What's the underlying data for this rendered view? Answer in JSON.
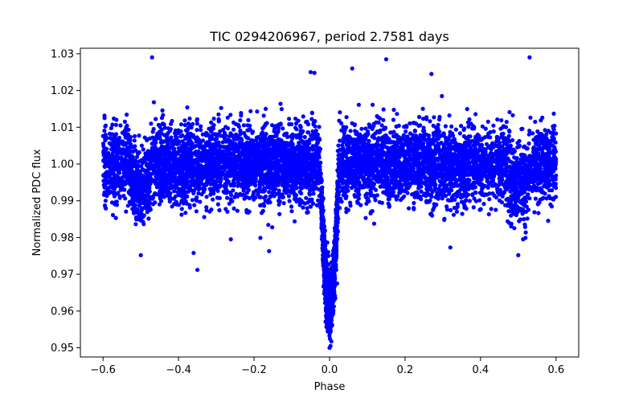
{
  "chart_data": {
    "type": "scatter",
    "title": "TIC 0294206967, period 2.7581 days",
    "xlabel": "Phase",
    "ylabel": "Normalized PDC flux",
    "xlim": [
      -0.66,
      0.66
    ],
    "ylim": [
      0.9475,
      1.0315
    ],
    "x_ticks": [
      -0.6,
      -0.4,
      -0.2,
      0.0,
      0.2,
      0.4,
      0.6
    ],
    "x_tick_labels": [
      "−0.6",
      "−0.4",
      "−0.2",
      "0.0",
      "0.2",
      "0.4",
      "0.6"
    ],
    "y_ticks": [
      0.95,
      0.96,
      0.97,
      0.98,
      0.99,
      1.0,
      1.01,
      1.02,
      1.03
    ],
    "y_tick_labels": [
      "0.95",
      "0.96",
      "0.97",
      "0.98",
      "0.99",
      "1.00",
      "1.01",
      "1.02",
      "1.03"
    ],
    "grid": false,
    "legend": null,
    "series": [
      {
        "name": "PDC flux",
        "color": "#0000ff",
        "marker": "circle",
        "phase_range": [
          -0.6,
          0.6
        ],
        "baseline_flux": 1.0,
        "baseline_scatter_sigma": 0.0055,
        "primary_transit": {
          "center": 0.0,
          "depth": 0.038,
          "half_width": 0.025,
          "min_flux": 0.95
        },
        "secondary_eclipses": [
          {
            "center": -0.5,
            "depth": 0.006,
            "half_width": 0.03
          },
          {
            "center": 0.5,
            "depth": 0.006,
            "half_width": 0.03
          }
        ],
        "outliers": [
          {
            "x": -0.47,
            "y": 1.029
          },
          {
            "x": 0.15,
            "y": 1.0285
          },
          {
            "x": 0.53,
            "y": 1.029
          },
          {
            "x": -0.05,
            "y": 1.025
          },
          {
            "x": -0.04,
            "y": 1.0248
          },
          {
            "x": 0.06,
            "y": 1.026
          },
          {
            "x": 0.27,
            "y": 1.0245
          },
          {
            "x": -0.35,
            "y": 0.9712
          },
          {
            "x": -0.36,
            "y": 0.9758
          },
          {
            "x": -0.5,
            "y": 0.9752
          },
          {
            "x": 0.5,
            "y": 0.9752
          },
          {
            "x": 0.32,
            "y": 0.9773
          },
          {
            "x": -0.16,
            "y": 0.9763
          },
          {
            "x": 0.02,
            "y": 0.9675
          },
          {
            "x": 0.0,
            "y": 0.95
          }
        ]
      }
    ]
  }
}
